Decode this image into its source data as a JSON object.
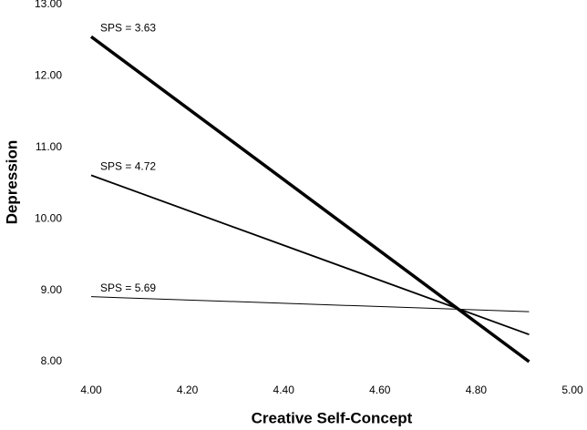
{
  "chart_data": {
    "type": "line",
    "x_label": "Creative Self-Concept",
    "y_label": "Depression",
    "x": [
      4.0,
      4.91
    ],
    "series": [
      {
        "name": "SPS = 3.63",
        "color": "#000000",
        "line_width": 3.5,
        "values": [
          12.55,
          8.0
        ]
      },
      {
        "name": "SPS = 4.72",
        "color": "#000000",
        "line_width": 1.8,
        "values": [
          10.61,
          8.38
        ]
      },
      {
        "name": "SPS = 5.69",
        "color": "#000000",
        "line_width": 1,
        "values": [
          8.91,
          8.7
        ]
      }
    ],
    "xlim": [
      4.0,
      5.0
    ],
    "xticks": [
      {
        "value": 4.0,
        "label": "4.00"
      },
      {
        "value": 4.2,
        "label": "4.20"
      },
      {
        "value": 4.4,
        "label": "4.40"
      },
      {
        "value": 4.6,
        "label": "4.60"
      },
      {
        "value": 4.8,
        "label": "4.80"
      },
      {
        "value": 5.0,
        "label": "5.00"
      }
    ],
    "ylim": [
      8.0,
      13.0
    ],
    "yticks": [
      {
        "value": 8,
        "label": "8.00"
      },
      {
        "value": 9,
        "label": "9.00"
      },
      {
        "value": 10,
        "label": "10.00"
      },
      {
        "value": 11,
        "label": "11.00"
      },
      {
        "value": 12,
        "label": "12.00"
      },
      {
        "value": 13,
        "label": "13.00"
      }
    ]
  }
}
